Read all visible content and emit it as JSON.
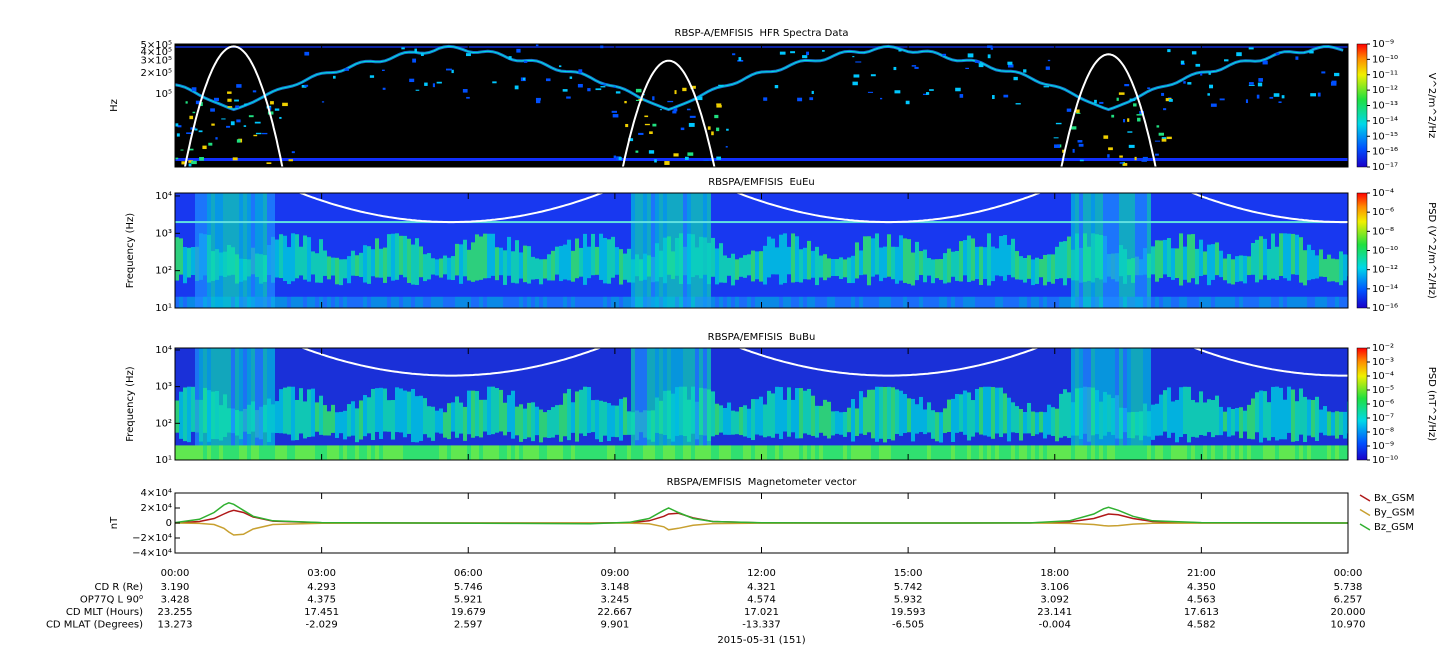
{
  "chart_data": [
    {
      "type": "spectrogram",
      "title": "RBSP-A/EMFISIS  HFR Spectra Data",
      "y_label": "Hz",
      "y_log": true,
      "ylim": [
        9000,
        520000
      ],
      "yticks": [
        {
          "value": 500000,
          "label": "5×10⁵"
        },
        {
          "value": 400000,
          "label": "4×10⁵"
        },
        {
          "value": 300000,
          "label": "3×10⁵"
        },
        {
          "value": 200000,
          "label": "2×10⁵"
        },
        {
          "value": 100000,
          "label": "10⁵"
        }
      ],
      "colorbar_label": "V^2/m^2/Hz",
      "zlim": [
        1e-17,
        1e-09
      ],
      "zticks": [
        {
          "value": 1e-09,
          "label": "10⁻⁹"
        },
        {
          "value": 1e-10,
          "label": "10⁻¹⁰"
        },
        {
          "value": 1e-11,
          "label": "10⁻¹¹"
        },
        {
          "value": 1e-12,
          "label": "10⁻¹²"
        },
        {
          "value": 1e-13,
          "label": "10⁻¹³"
        },
        {
          "value": 1e-14,
          "label": "10⁻¹⁴"
        },
        {
          "value": 1e-15,
          "label": "10⁻¹⁵"
        },
        {
          "value": 1e-16,
          "label": "10⁻¹⁶"
        },
        {
          "value": 1e-17,
          "label": "10⁻¹⁷"
        }
      ]
    },
    {
      "type": "spectrogram",
      "title": "RBSPA/EMFISIS  EuEu",
      "y_label": "Frequency (Hz)",
      "y_log": true,
      "ylim": [
        10,
        12000
      ],
      "yticks": [
        {
          "value": 10,
          "label": "10¹"
        },
        {
          "value": 100,
          "label": "10²"
        },
        {
          "value": 1000,
          "label": "10³"
        },
        {
          "value": 10000,
          "label": "10⁴"
        }
      ],
      "colorbar_label": "PSD (V^2/m^2/Hz)",
      "zlim": [
        1e-16,
        0.0001
      ],
      "zticks": [
        {
          "value": 0.0001,
          "label": "10⁻⁴"
        },
        {
          "value": 1e-06,
          "label": "10⁻⁶"
        },
        {
          "value": 1e-08,
          "label": "10⁻⁸"
        },
        {
          "value": 1e-10,
          "label": "10⁻¹⁰"
        },
        {
          "value": 1e-12,
          "label": "10⁻¹²"
        },
        {
          "value": 1e-14,
          "label": "10⁻¹⁴"
        },
        {
          "value": 1e-16,
          "label": "10⁻¹⁶"
        }
      ]
    },
    {
      "type": "spectrogram",
      "title": "RBSPA/EMFISIS  BuBu",
      "y_label": "Frequency (Hz)",
      "y_log": true,
      "ylim": [
        10,
        11300
      ],
      "yticks": [
        {
          "value": 10,
          "label": "10¹"
        },
        {
          "value": 100,
          "label": "10²"
        },
        {
          "value": 1000,
          "label": "10³"
        },
        {
          "value": 10000,
          "label": "10⁴"
        }
      ],
      "colorbar_label": "PSD (nT^2/Hz)",
      "zlim": [
        1e-10,
        0.01
      ],
      "zticks": [
        {
          "value": 0.01,
          "label": "10⁻²"
        },
        {
          "value": 0.001,
          "label": "10⁻³"
        },
        {
          "value": 0.0001,
          "label": "10⁻⁴"
        },
        {
          "value": 1e-05,
          "label": "10⁻⁵"
        },
        {
          "value": 1e-06,
          "label": "10⁻⁶"
        },
        {
          "value": 1e-07,
          "label": "10⁻⁷"
        },
        {
          "value": 1e-08,
          "label": "10⁻⁸"
        },
        {
          "value": 1e-09,
          "label": "10⁻⁹"
        },
        {
          "value": 1e-10,
          "label": "10⁻¹⁰"
        }
      ]
    },
    {
      "type": "line",
      "title": "RBSPA/EMFISIS  Magnetometer vector",
      "y_label": "nT",
      "x_label": "2015-05-31 (151)",
      "xlim": [
        0,
        24
      ],
      "xticks": [
        {
          "value": 0,
          "label": "00:00"
        },
        {
          "value": 3,
          "label": "03:00"
        },
        {
          "value": 6,
          "label": "06:00"
        },
        {
          "value": 9,
          "label": "09:00"
        },
        {
          "value": 12,
          "label": "12:00"
        },
        {
          "value": 15,
          "label": "15:00"
        },
        {
          "value": 18,
          "label": "18:00"
        },
        {
          "value": 21,
          "label": "21:00"
        },
        {
          "value": 24,
          "label": "00:00"
        }
      ],
      "ylim": [
        -40000,
        40000
      ],
      "yticks": [
        {
          "value": 40000,
          "label": "4×10⁴"
        },
        {
          "value": 20000,
          "label": "2×10⁴"
        },
        0,
        {
          "value": -20000,
          "label": "−2×10⁴"
        },
        {
          "value": -40000,
          "label": "−4×10⁴"
        }
      ],
      "x": [
        0,
        0.5,
        0.8,
        1.0,
        1.1,
        1.2,
        1.4,
        1.6,
        2,
        3,
        5,
        7,
        8.5,
        9.3,
        9.7,
        10.0,
        10.1,
        10.3,
        10.6,
        11,
        12,
        14,
        16,
        17.5,
        18.3,
        18.8,
        19.0,
        19.1,
        19.3,
        19.6,
        20,
        21,
        24
      ],
      "series": [
        {
          "name": "Bx_GSM",
          "color": "#b01818",
          "values": [
            200,
            2000,
            6000,
            12000,
            15000,
            17000,
            14000,
            8000,
            2500,
            300,
            0,
            0,
            0,
            500,
            3000,
            9000,
            12000,
            13000,
            7000,
            2000,
            200,
            0,
            0,
            100,
            1500,
            6000,
            10000,
            12000,
            11000,
            6000,
            2000,
            200,
            0
          ]
        },
        {
          "name": "By_GSM",
          "color": "#c8a030",
          "values": [
            0,
            -500,
            -2000,
            -7000,
            -12000,
            -16000,
            -15000,
            -8000,
            -2000,
            -300,
            0,
            0,
            0,
            -200,
            -1000,
            -5000,
            -9000,
            -7000,
            -3000,
            -800,
            -100,
            0,
            0,
            0,
            -500,
            -2000,
            -3500,
            -4000,
            -3500,
            -1500,
            -400,
            -100,
            0
          ]
        },
        {
          "name": "Bz_GSM",
          "color": "#30b030",
          "values": [
            500,
            5000,
            14000,
            24000,
            27000,
            25000,
            17000,
            9000,
            3000,
            500,
            0,
            -500,
            -1000,
            1000,
            6000,
            17000,
            20000,
            14000,
            6000,
            2000,
            300,
            0,
            0,
            200,
            3000,
            12000,
            19000,
            21000,
            17000,
            9000,
            3000,
            500,
            0
          ]
        }
      ]
    }
  ],
  "ephemeris": [
    {
      "label": "CD R (Re)",
      "values": [
        "3.190",
        "4.293",
        "5.746",
        "3.148",
        "4.321",
        "5.742",
        "3.106",
        "4.350",
        "5.738"
      ]
    },
    {
      "label": "OP77Q L 90⁰",
      "values": [
        "3.428",
        "4.375",
        "5.921",
        "3.245",
        "4.574",
        "5.932",
        "3.092",
        "4.563",
        "6.257"
      ]
    },
    {
      "label": "CD MLT (Hours)",
      "values": [
        "23.255",
        "17.451",
        "19.679",
        "22.667",
        "17.021",
        "19.593",
        "23.141",
        "17.613",
        "20.000"
      ]
    },
    {
      "label": "CD MLAT (Degrees)",
      "values": [
        "13.273",
        "-2.029",
        "2.597",
        "9.901",
        "-13.337",
        "-6.505",
        "-0.004",
        "4.582",
        "10.970"
      ]
    }
  ]
}
